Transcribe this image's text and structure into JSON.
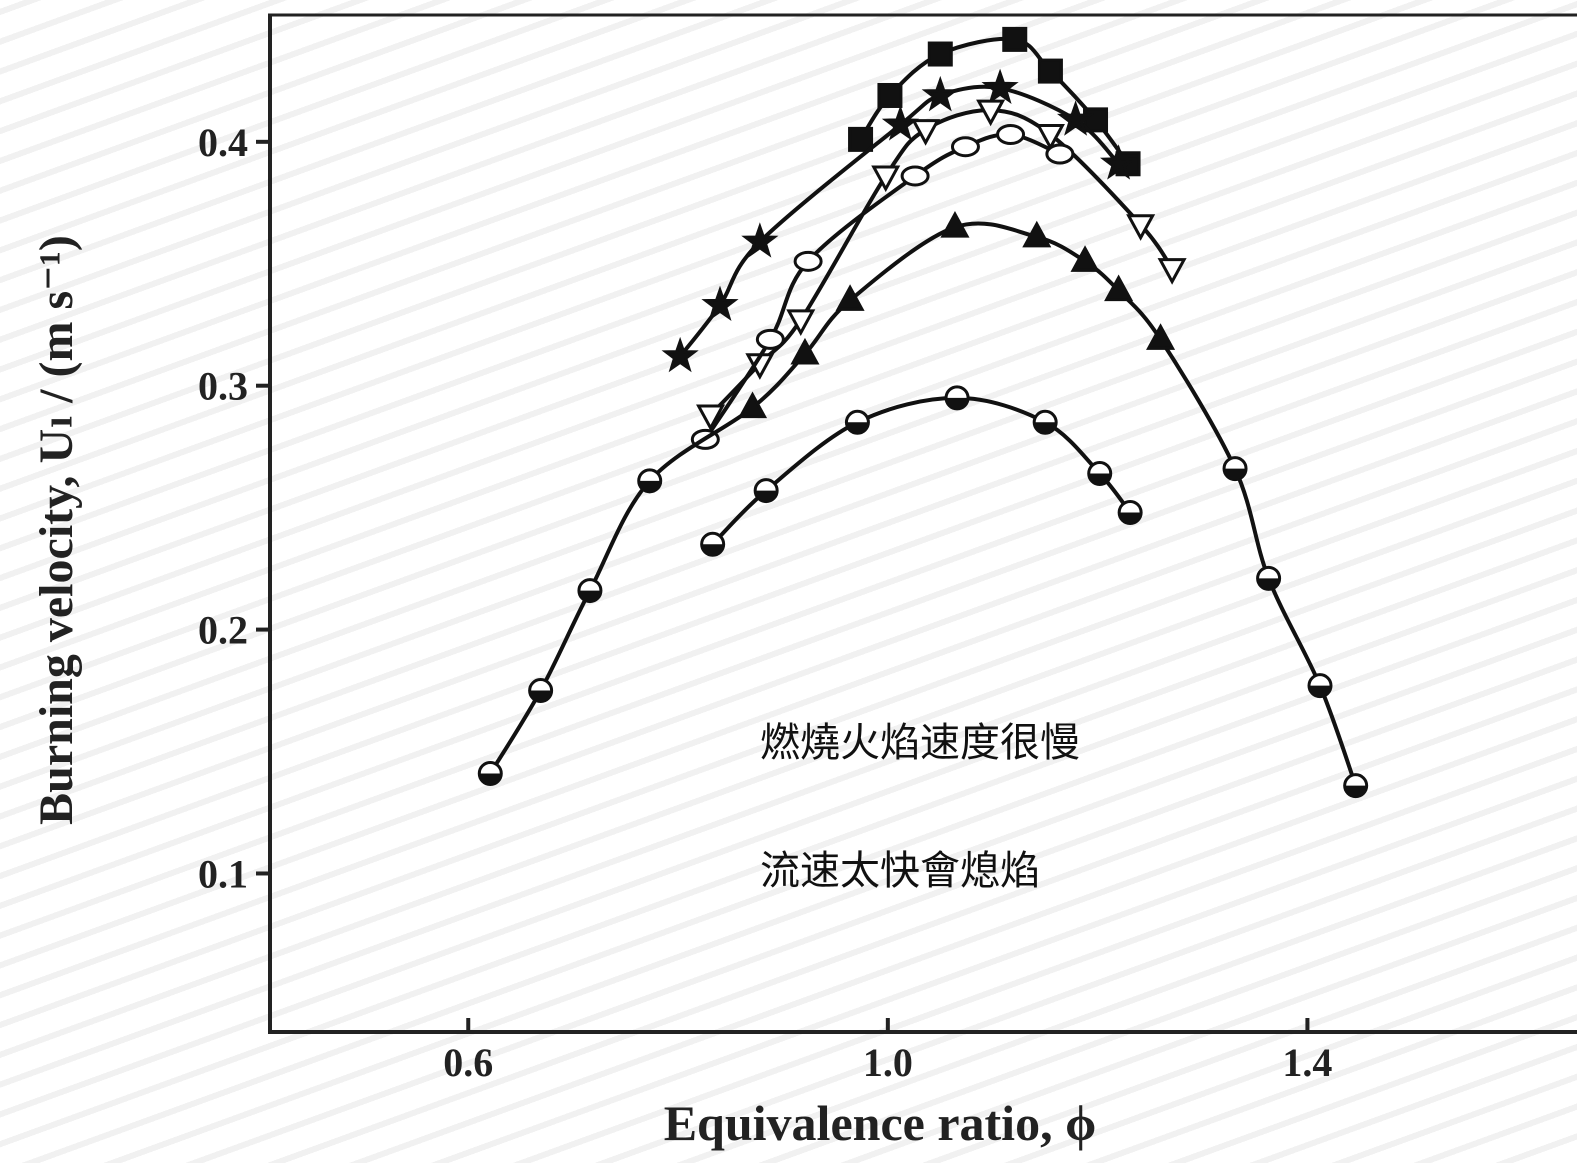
{
  "chart_data": {
    "type": "line",
    "x_label": "Equivalence ratio, ϕ",
    "y_label": "Burning velocity, Uₗ / (m s⁻¹)",
    "annotations": [
      "燃燒火焰速度很慢",
      "流速太快會熄焰"
    ],
    "xlim": [
      0.411,
      1.657
    ],
    "ylim": [
      0.035,
      0.452
    ],
    "xticks": [
      {
        "value": 0.6,
        "label": "0.6"
      },
      {
        "value": 1.0,
        "label": "1.0"
      },
      {
        "value": 1.4,
        "label": "1.4"
      }
    ],
    "yticks": [
      0.1,
      0.2,
      0.3,
      0.4
    ],
    "series": [
      {
        "color": "#111111",
        "marker": "square-filled",
        "x": [
          0.974,
          1.002,
          1.05,
          1.121,
          1.155,
          1.198,
          1.229
        ],
        "values": [
          0.401,
          0.419,
          0.436,
          0.442,
          0.429,
          0.409,
          0.391
        ]
      },
      {
        "color": "#111111",
        "marker": "star",
        "x": [
          0.802,
          0.84,
          0.878,
          1.012,
          1.05,
          1.107,
          1.179,
          1.22
        ],
        "values": [
          0.312,
          0.333,
          0.359,
          0.407,
          0.419,
          0.422,
          0.409,
          0.391
        ]
      },
      {
        "color": "#111111",
        "marker": "triangle-down-open",
        "x": [
          0.831,
          0.878,
          0.917,
          0.998,
          1.036,
          1.098,
          1.155,
          1.241,
          1.271
        ],
        "values": [
          0.288,
          0.309,
          0.327,
          0.386,
          0.405,
          0.413,
          0.403,
          0.366,
          0.348
        ]
      },
      {
        "color": "#111111",
        "marker": "ellipse-open",
        "x": [
          0.826,
          0.888,
          0.924,
          1.026,
          1.074,
          1.117,
          1.164
        ],
        "values": [
          0.278,
          0.319,
          0.351,
          0.386,
          0.398,
          0.403,
          0.395
        ]
      },
      {
        "color": "#111111",
        "marker": "circle-half",
        "markers": [
          "circle-half",
          "circle-half",
          "circle-half",
          "circle-half",
          "triangle-filled",
          "triangle-filled",
          "triangle-filled",
          "triangle-filled",
          "triangle-filled",
          "triangle-filled",
          "triangle-filled",
          "triangle-filled",
          "circle-half",
          "circle-half",
          "circle-half",
          "circle-half"
        ],
        "x": [
          0.621,
          0.669,
          0.716,
          0.773,
          0.871,
          0.921,
          0.964,
          1.064,
          1.142,
          1.188,
          1.22,
          1.26,
          1.331,
          1.363,
          1.412,
          1.446
        ],
        "values": [
          0.141,
          0.175,
          0.216,
          0.261,
          0.291,
          0.313,
          0.335,
          0.365,
          0.361,
          0.351,
          0.339,
          0.319,
          0.266,
          0.221,
          0.177,
          0.136
        ]
      },
      {
        "color": "#111111",
        "marker": "circle-half",
        "x": [
          0.833,
          0.884,
          0.971,
          1.066,
          1.15,
          1.202,
          1.231
        ],
        "values": [
          0.235,
          0.257,
          0.285,
          0.295,
          0.285,
          0.264,
          0.248
        ]
      }
    ]
  }
}
